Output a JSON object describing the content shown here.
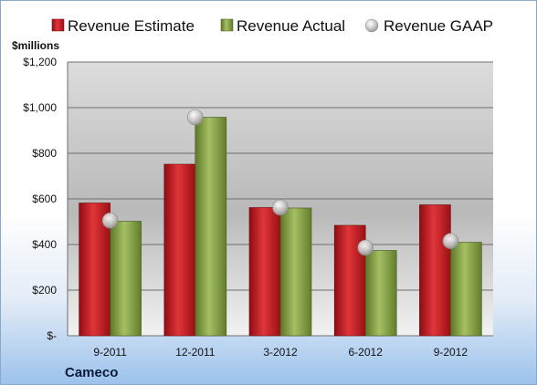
{
  "chart_data": {
    "type": "bar",
    "units": "$millions",
    "company": "Cameco",
    "categories": [
      "9-2011",
      "12-2011",
      "3-2012",
      "6-2012",
      "9-2012"
    ],
    "series": [
      {
        "name": "Revenue Estimate",
        "type": "bar",
        "color": "#c0161d",
        "values": [
          582,
          752,
          562,
          484,
          574
        ]
      },
      {
        "name": "Revenue Actual",
        "type": "bar",
        "color": "#7f9b3f",
        "values": [
          502,
          958,
          560,
          374,
          410
        ]
      },
      {
        "name": "Revenue GAAP",
        "type": "marker",
        "color": "#b8b8b8",
        "values": [
          505,
          958,
          562,
          386,
          415
        ]
      }
    ],
    "ylim": [
      0,
      1200
    ],
    "yticks": [
      {
        "value": 0,
        "label": "$-"
      },
      {
        "value": 200,
        "label": "$200"
      },
      {
        "value": 400,
        "label": "$400"
      },
      {
        "value": 600,
        "label": "$600"
      },
      {
        "value": 800,
        "label": "$800"
      },
      {
        "value": 1000,
        "label": "$1,000"
      },
      {
        "value": 1200,
        "label": "$1,200"
      }
    ],
    "legend_position": "top",
    "grid": true
  }
}
